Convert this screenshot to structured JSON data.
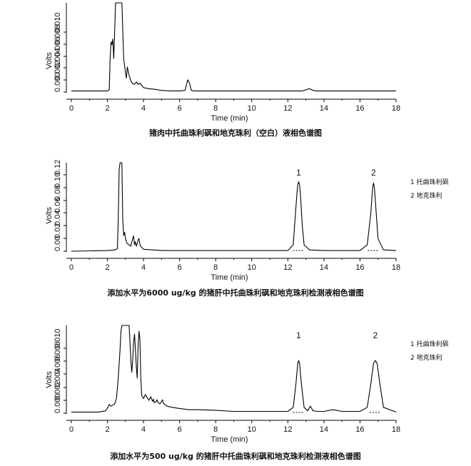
{
  "chart_data": [
    {
      "type": "line",
      "caption": "猪肉中托曲珠利砜和地克珠利（空白）液相色谱图",
      "xlabel": "Time (min)",
      "ylabel": "Volts",
      "xlim": [
        0,
        18
      ],
      "x_ticks": [
        "0",
        "2",
        "4",
        "6",
        "8",
        "10",
        "12",
        "14",
        "16",
        "18"
      ],
      "y_tick_labels": [
        "0.000",
        "0.002",
        "0.004",
        "0.006",
        "0.008",
        "0.010"
      ],
      "peaks": [],
      "legend": [],
      "series": [
        {
          "x": [
            0,
            2.0,
            2.1,
            2.15,
            2.2,
            2.25,
            2.3,
            2.35,
            2.4,
            2.45,
            2.5,
            2.6,
            2.7,
            2.8,
            2.9,
            3.0,
            3.05,
            3.1,
            3.2,
            3.3,
            3.4,
            3.5,
            3.6,
            3.7,
            3.8,
            3.9,
            4.0,
            4.3,
            4.6,
            5.0,
            5.5,
            6.0,
            6.3,
            6.45,
            6.55,
            6.65,
            6.8,
            7.0,
            8,
            9,
            10,
            11,
            12,
            12.8,
            13.2,
            13.4,
            13.6,
            14,
            15,
            16,
            17,
            18
          ],
          "y": [
            0.0002,
            0.0002,
            0.0004,
            0.006,
            0.009,
            0.0085,
            0.0095,
            0.006,
            0.011,
            0.016,
            0.016,
            0.016,
            0.016,
            0.016,
            0.006,
            0.0035,
            0.0025,
            0.0045,
            0.003,
            0.002,
            0.0015,
            0.0014,
            0.0018,
            0.0014,
            0.0016,
            0.0012,
            0.0008,
            0.0006,
            0.0005,
            0.0003,
            0.0002,
            0.0002,
            0.0003,
            0.0022,
            0.0016,
            0.0003,
            0.0002,
            0.0002,
            0.0002,
            0.0002,
            0.0002,
            0.0002,
            0.0002,
            0.0002,
            0.0006,
            0.0003,
            0.0002,
            0.0002,
            0.0002,
            0.0002,
            0.0002,
            0.0002
          ]
        }
      ]
    },
    {
      "type": "line",
      "caption": "添加水平为6000 ug/kg 的猪肝中托曲珠利砜和地克珠利检测液相色谱图",
      "xlabel": "Time (min)",
      "ylabel": "Volts",
      "xlim": [
        0,
        18
      ],
      "x_ticks": [
        "0",
        "2",
        "4",
        "6",
        "8",
        "10",
        "12",
        "14",
        "16",
        "18"
      ],
      "y_tick_labels": [
        "0.00",
        "0.02",
        "0.04",
        "0.06",
        "0.08",
        "0.10",
        "0.12"
      ],
      "peaks": [
        {
          "label": "1",
          "x": 12.6
        },
        {
          "label": "2",
          "x": 16.75
        }
      ],
      "legend": [
        "1 托曲珠利砜",
        "2 地克珠利"
      ],
      "series": [
        {
          "x": [
            0,
            2.0,
            2.4,
            2.55,
            2.6,
            2.65,
            2.7,
            2.75,
            2.8,
            2.85,
            2.9,
            2.95,
            3.0,
            3.05,
            3.1,
            3.2,
            3.3,
            3.4,
            3.45,
            3.5,
            3.55,
            3.6,
            3.65,
            3.7,
            3.75,
            3.8,
            3.85,
            3.9,
            4.0,
            4.5,
            5.0,
            6,
            8,
            10,
            11,
            12.0,
            12.3,
            12.4,
            12.5,
            12.55,
            12.6,
            12.65,
            12.7,
            12.8,
            12.9,
            13.2,
            14,
            15,
            16.0,
            16.4,
            16.6,
            16.7,
            16.75,
            16.8,
            16.9,
            17.0,
            17.3,
            18
          ],
          "y": [
            0.0,
            0.001,
            0.002,
            0.004,
            0.05,
            0.13,
            0.14,
            0.14,
            0.14,
            0.05,
            0.025,
            0.03,
            0.02,
            0.015,
            0.012,
            0.01,
            0.008,
            0.02,
            0.024,
            0.01,
            0.015,
            0.008,
            0.012,
            0.018,
            0.02,
            0.01,
            0.008,
            0.006,
            0.003,
            0.002,
            0.001,
            0.001,
            0.001,
            0.001,
            0.001,
            0.001,
            0.01,
            0.05,
            0.09,
            0.105,
            0.11,
            0.105,
            0.09,
            0.04,
            0.01,
            0.002,
            0.001,
            0.001,
            0.001,
            0.01,
            0.06,
            0.1,
            0.108,
            0.1,
            0.06,
            0.02,
            0.002,
            0.001
          ]
        }
      ]
    },
    {
      "type": "line",
      "caption": "添加水平为500 ug/kg 的猪肝中托曲珠利砜和地克珠利检测液相色谱图",
      "xlabel": "Time (min)",
      "ylabel": "Volts",
      "xlim": [
        0,
        18
      ],
      "x_ticks": [
        "0",
        "2",
        "4",
        "6",
        "8",
        "10",
        "12",
        "14",
        "16",
        "18"
      ],
      "y_tick_labels": [
        "0.000",
        "0.002",
        "0.004",
        "0.006",
        "0.008",
        "0.010"
      ],
      "peaks": [
        {
          "label": "1",
          "x": 12.6
        },
        {
          "label": "2",
          "x": 16.85
        }
      ],
      "legend": [
        "1 托曲珠利砜",
        "2 地克珠利"
      ],
      "series": [
        {
          "x": [
            0,
            1.5,
            1.9,
            2.0,
            2.1,
            2.15,
            2.2,
            2.4,
            2.5,
            2.6,
            2.7,
            2.75,
            2.8,
            3.0,
            3.2,
            3.3,
            3.35,
            3.4,
            3.45,
            3.5,
            3.55,
            3.6,
            3.65,
            3.7,
            3.75,
            3.8,
            3.85,
            3.9,
            4.0,
            4.1,
            4.2,
            4.3,
            4.4,
            4.5,
            4.55,
            4.6,
            4.7,
            4.75,
            4.8,
            4.9,
            5.0,
            5.05,
            5.1,
            5.3,
            5.6,
            6.0,
            6.5,
            7,
            8,
            9,
            10,
            11,
            12.0,
            12.3,
            12.45,
            12.55,
            12.6,
            12.65,
            12.75,
            12.9,
            13.1,
            13.25,
            13.4,
            13.7,
            14,
            14.5,
            15,
            16.0,
            16.4,
            16.6,
            16.75,
            16.85,
            16.95,
            17.1,
            17.3,
            18
          ],
          "y": [
            0.0002,
            0.0002,
            0.0004,
            0.0009,
            0.0015,
            0.0013,
            0.0012,
            0.0016,
            0.0025,
            0.006,
            0.011,
            0.014,
            0.015,
            0.015,
            0.015,
            0.009,
            0.007,
            0.009,
            0.012,
            0.0135,
            0.011,
            0.008,
            0.006,
            0.0115,
            0.014,
            0.0125,
            0.006,
            0.003,
            0.0025,
            0.0032,
            0.0027,
            0.0022,
            0.0028,
            0.002,
            0.0024,
            0.0018,
            0.002,
            0.0023,
            0.0018,
            0.0016,
            0.002,
            0.0023,
            0.0017,
            0.0012,
            0.001,
            0.0008,
            0.0006,
            0.0006,
            0.0005,
            0.0003,
            0.0003,
            0.0003,
            0.0003,
            0.001,
            0.005,
            0.0085,
            0.009,
            0.0085,
            0.005,
            0.001,
            0.0004,
            0.0012,
            0.0004,
            0.0003,
            0.0003,
            0.0006,
            0.0003,
            0.0003,
            0.001,
            0.005,
            0.0085,
            0.009,
            0.0085,
            0.005,
            0.001,
            0.0002
          ]
        }
      ]
    }
  ]
}
